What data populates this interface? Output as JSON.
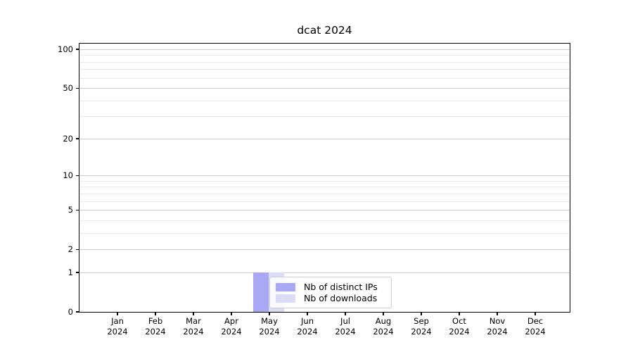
{
  "title": "dcat 2024",
  "chart_data": {
    "type": "bar",
    "title": "dcat 2024",
    "categories": [
      "Jan",
      "Feb",
      "Mar",
      "Apr",
      "May",
      "Jun",
      "Jul",
      "Aug",
      "Sep",
      "Oct",
      "Nov",
      "Dec"
    ],
    "year_label": "2024",
    "series": [
      {
        "name": "Nb of distinct IPs",
        "color": "#a8a8f5",
        "values": [
          0,
          0,
          0,
          0,
          1,
          0,
          0,
          0,
          0,
          0,
          0,
          0
        ]
      },
      {
        "name": "Nb of downloads",
        "color": "#dcdcf8",
        "values": [
          0,
          0,
          0,
          0,
          1,
          0,
          0,
          0,
          0,
          0,
          0,
          0
        ]
      }
    ],
    "y_axis": {
      "scale": "log1p",
      "tick_labels": [
        100,
        50,
        20,
        10,
        5,
        2,
        1,
        0
      ],
      "minor_gridlines": [
        90,
        80,
        70,
        60,
        40,
        30,
        9,
        8,
        7,
        6,
        4,
        3
      ],
      "range": [
        0,
        100
      ]
    },
    "legend": {
      "position": "inside-bottom-center",
      "entries": [
        "Nb of distinct IPs",
        "Nb of downloads"
      ]
    },
    "grid": {
      "major_color": "#cccccc",
      "minor_color": "#ebebeb"
    }
  }
}
